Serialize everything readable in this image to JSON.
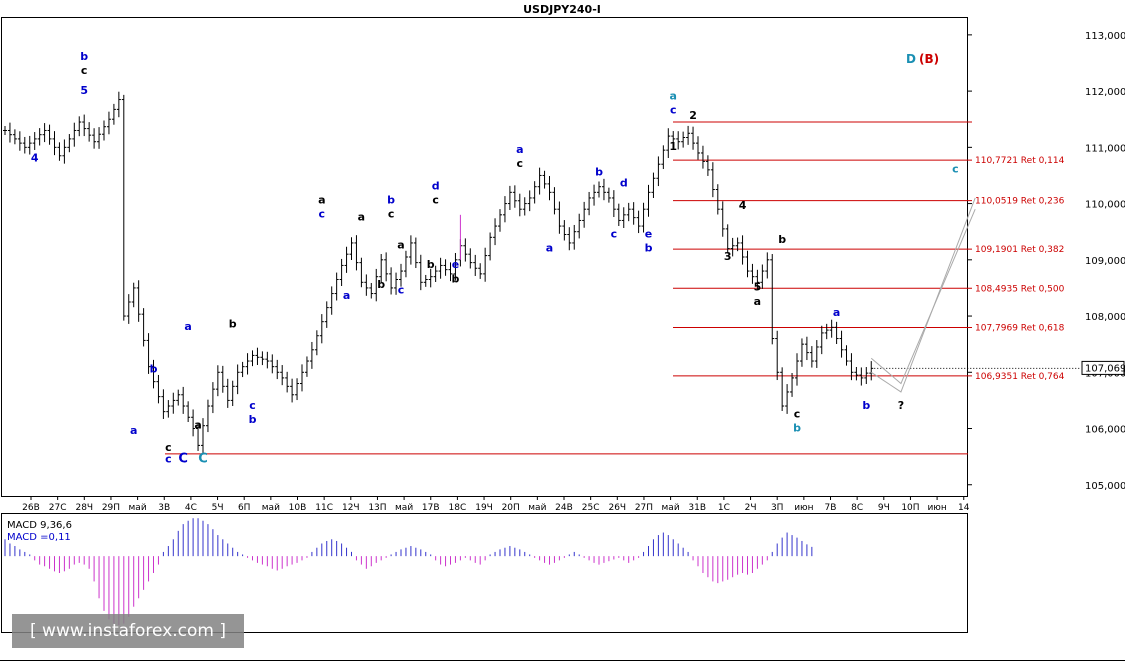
{
  "chart_data": {
    "type": "candlestick",
    "title": "USDJPY240-I",
    "y_range": [
      104.8,
      113.3
    ],
    "y_ticks": [
      "113,000",
      "112,000",
      "111,000",
      "110,000",
      "109,000",
      "108,000",
      "107,000",
      "106,000",
      "105,000"
    ],
    "y_tick_values": [
      113,
      112,
      111,
      110,
      109,
      108,
      107,
      106,
      105
    ],
    "current_price": {
      "value": 107.069,
      "label": "107,069"
    },
    "x_ticks": [
      "26В",
      "27С",
      "28Ч",
      "29П",
      "май",
      "3В",
      "4С",
      "5Ч",
      "6П",
      "май",
      "10В",
      "11С",
      "12Ч",
      "13П",
      "май",
      "17В",
      "18С",
      "19Ч",
      "20П",
      "май",
      "24В",
      "25С",
      "26Ч",
      "27П",
      "май",
      "31В",
      "1С",
      "2Ч",
      "3П",
      "июн",
      "7В",
      "8С",
      "9Ч",
      "10П",
      "июн",
      "14"
    ],
    "fibonacci_levels": [
      {
        "value": 110.7721,
        "label": "110,7721 Ret 0,114"
      },
      {
        "value": 110.0519,
        "label": "110,0519 Ret 0,236"
      },
      {
        "value": 109.1901,
        "label": "109,1901 Ret 0,382"
      },
      {
        "value": 108.4935,
        "label": "108,4935 Ret 0,500"
      },
      {
        "value": 107.7969,
        "label": "107,7969 Ret 0,618"
      },
      {
        "value": 106.9351,
        "label": "106,9351 Ret 0,764"
      }
    ],
    "fib_top_value": 111.45,
    "support_level_value": 105.55,
    "price_path": [
      [
        0,
        111.3
      ],
      [
        4,
        111.0
      ],
      [
        8,
        111.3
      ],
      [
        11,
        110.85
      ],
      [
        15,
        111.45
      ],
      [
        18,
        111.1
      ],
      [
        21,
        111.5
      ],
      [
        23,
        111.85
      ],
      [
        24,
        108.0
      ],
      [
        26,
        108.5
      ],
      [
        29,
        107.1
      ],
      [
        32,
        106.3
      ],
      [
        35,
        106.6
      ],
      [
        38,
        106.0
      ],
      [
        39,
        105.7
      ],
      [
        41,
        106.4
      ],
      [
        43,
        107.0
      ],
      [
        45,
        106.5
      ],
      [
        47,
        107.0
      ],
      [
        50,
        107.3
      ],
      [
        53,
        107.2
      ],
      [
        56,
        106.9
      ],
      [
        58,
        106.6
      ],
      [
        60,
        107.0
      ],
      [
        62,
        107.4
      ],
      [
        64,
        107.9
      ],
      [
        66,
        108.4
      ],
      [
        68,
        108.9
      ],
      [
        70,
        109.3
      ],
      [
        72,
        108.6
      ],
      [
        74,
        108.4
      ],
      [
        76,
        109.0
      ],
      [
        78,
        108.5
      ],
      [
        80,
        108.8
      ],
      [
        82,
        109.3
      ],
      [
        84,
        108.6
      ],
      [
        86,
        108.7
      ],
      [
        88,
        108.9
      ],
      [
        90,
        108.75
      ],
      [
        92,
        109.25
      ],
      [
        94,
        108.95
      ],
      [
        96,
        108.75
      ],
      [
        98,
        109.4
      ],
      [
        100,
        109.8
      ],
      [
        102,
        110.2
      ],
      [
        104,
        109.9
      ],
      [
        106,
        110.1
      ],
      [
        108,
        110.5
      ],
      [
        110,
        110.2
      ],
      [
        112,
        109.6
      ],
      [
        114,
        109.3
      ],
      [
        116,
        109.7
      ],
      [
        118,
        110.1
      ],
      [
        120,
        110.3
      ],
      [
        122,
        110.1
      ],
      [
        124,
        109.7
      ],
      [
        126,
        109.9
      ],
      [
        128,
        109.6
      ],
      [
        130,
        110.2
      ],
      [
        132,
        110.7
      ],
      [
        134,
        111.2
      ],
      [
        136,
        111.1
      ],
      [
        138,
        111.25
      ],
      [
        140,
        110.9
      ],
      [
        142,
        110.6
      ],
      [
        144,
        109.9
      ],
      [
        146,
        109.2
      ],
      [
        148,
        109.3
      ],
      [
        150,
        108.8
      ],
      [
        152,
        108.6
      ],
      [
        154,
        109.0
      ],
      [
        155,
        107.6
      ],
      [
        157,
        106.4
      ],
      [
        159,
        106.9
      ],
      [
        161,
        107.5
      ],
      [
        163,
        107.2
      ],
      [
        165,
        107.7
      ],
      [
        167,
        107.8
      ],
      [
        169,
        107.4
      ],
      [
        171,
        107.0
      ],
      [
        173,
        106.9
      ],
      [
        175,
        107.07
      ]
    ],
    "projection_paths": [
      [
        [
          175,
          107.0
        ],
        [
          181,
          106.65
        ],
        [
          196,
          110.1
        ]
      ],
      [
        [
          175,
          107.25
        ],
        [
          181,
          106.8
        ],
        [
          196,
          109.9
        ]
      ]
    ],
    "wave_labels": [
      {
        "text": "b",
        "color": "#0000cc",
        "x": 16,
        "y": 112.55
      },
      {
        "text": "c",
        "color": "#000000",
        "x": 16,
        "y": 112.3
      },
      {
        "text": "5",
        "color": "#0000cc",
        "x": 16,
        "y": 111.95
      },
      {
        "text": "4",
        "color": "#0000cc",
        "x": 6,
        "y": 110.75
      },
      {
        "text": "a",
        "color": "#0000cc",
        "x": 26,
        "y": 105.9
      },
      {
        "text": "b",
        "color": "#0000cc",
        "x": 30,
        "y": 107.0
      },
      {
        "text": "c",
        "color": "#000000",
        "x": 33,
        "y": 105.6
      },
      {
        "text": "c",
        "color": "#0000cc",
        "x": 33,
        "y": 105.4
      },
      {
        "text": "C",
        "color": "#0000cc",
        "x": 36,
        "y": 105.4
      },
      {
        "text": "C",
        "color": "#1a8fb3",
        "x": 40,
        "y": 105.4
      },
      {
        "text": "a",
        "color": "#0000cc",
        "x": 37,
        "y": 107.75
      },
      {
        "text": "a",
        "color": "#000000",
        "x": 39,
        "y": 106.0
      },
      {
        "text": "b",
        "color": "#000000",
        "x": 46,
        "y": 107.8
      },
      {
        "text": "c",
        "color": "#0000cc",
        "x": 50,
        "y": 106.35
      },
      {
        "text": "b",
        "color": "#0000cc",
        "x": 50,
        "y": 106.1
      },
      {
        "text": "a",
        "color": "#000000",
        "x": 64,
        "y": 110.0
      },
      {
        "text": "c",
        "color": "#0000cc",
        "x": 64,
        "y": 109.75
      },
      {
        "text": "a",
        "color": "#0000cc",
        "x": 69,
        "y": 108.3
      },
      {
        "text": "a",
        "color": "#000000",
        "x": 72,
        "y": 109.7
      },
      {
        "text": "b",
        "color": "#000000",
        "x": 76,
        "y": 108.5
      },
      {
        "text": "b",
        "color": "#0000cc",
        "x": 78,
        "y": 110.0
      },
      {
        "text": "c",
        "color": "#000000",
        "x": 78,
        "y": 109.75
      },
      {
        "text": "c",
        "color": "#0000cc",
        "x": 80,
        "y": 108.4
      },
      {
        "text": "a",
        "color": "#000000",
        "x": 80,
        "y": 109.2
      },
      {
        "text": "b",
        "color": "#000000",
        "x": 86,
        "y": 108.85
      },
      {
        "text": "d",
        "color": "#0000cc",
        "x": 87,
        "y": 110.25
      },
      {
        "text": "c",
        "color": "#000000",
        "x": 87,
        "y": 110.0
      },
      {
        "text": "e",
        "color": "#0000cc",
        "x": 91,
        "y": 108.85
      },
      {
        "text": "b",
        "color": "#000000",
        "x": 91,
        "y": 108.6
      },
      {
        "text": "a",
        "color": "#0000cc",
        "x": 104,
        "y": 110.9
      },
      {
        "text": "c",
        "color": "#000000",
        "x": 104,
        "y": 110.65
      },
      {
        "text": "a",
        "color": "#0000cc",
        "x": 110,
        "y": 109.15
      },
      {
        "text": "b",
        "color": "#0000cc",
        "x": 120,
        "y": 110.5
      },
      {
        "text": "d",
        "color": "#0000cc",
        "x": 125,
        "y": 110.3
      },
      {
        "text": "c",
        "color": "#0000cc",
        "x": 123,
        "y": 109.4
      },
      {
        "text": "e",
        "color": "#0000cc",
        "x": 130,
        "y": 109.4
      },
      {
        "text": "b",
        "color": "#0000cc",
        "x": 130,
        "y": 109.15
      },
      {
        "text": "a",
        "color": "#1a8fb3",
        "x": 135,
        "y": 111.85
      },
      {
        "text": "c",
        "color": "#0000cc",
        "x": 135,
        "y": 111.6
      },
      {
        "text": "2",
        "color": "#000000",
        "x": 139,
        "y": 111.5
      },
      {
        "text": "1",
        "color": "#000000",
        "x": 135,
        "y": 110.95
      },
      {
        "text": "4",
        "color": "#000000",
        "x": 149,
        "y": 109.9
      },
      {
        "text": "3",
        "color": "#000000",
        "x": 146,
        "y": 109.0
      },
      {
        "text": "b",
        "color": "#000000",
        "x": 157,
        "y": 109.3
      },
      {
        "text": "5",
        "color": "#000000",
        "x": 152,
        "y": 108.45
      },
      {
        "text": "a",
        "color": "#000000",
        "x": 152,
        "y": 108.2
      },
      {
        "text": "a",
        "color": "#0000cc",
        "x": 168,
        "y": 108.0
      },
      {
        "text": "c",
        "color": "#000000",
        "x": 160,
        "y": 106.2
      },
      {
        "text": "b",
        "color": "#1a8fb3",
        "x": 160,
        "y": 105.95
      },
      {
        "text": "b",
        "color": "#0000cc",
        "x": 174,
        "y": 106.35
      },
      {
        "text": "?",
        "color": "#000000",
        "x": 181,
        "y": 106.35
      },
      {
        "text": "c",
        "color": "#1a8fb3",
        "x": 192,
        "y": 110.55
      }
    ],
    "wave_degree_label": {
      "main": "D",
      "main_color": "#1a8fb3",
      "alt": "(B)",
      "alt_color": "#cc0000"
    },
    "macd": {
      "label": "MACD 9,36,6",
      "value_label": "MACD =0,11",
      "range": [
        -0.9,
        0.5
      ],
      "values": [
        0.2,
        0.15,
        0.12,
        0.08,
        0.05,
        0.02,
        -0.05,
        -0.1,
        -0.12,
        -0.15,
        -0.18,
        -0.2,
        -0.18,
        -0.15,
        -0.1,
        -0.08,
        -0.1,
        -0.15,
        -0.3,
        -0.5,
        -0.65,
        -0.75,
        -0.8,
        -0.82,
        -0.8,
        -0.72,
        -0.6,
        -0.5,
        -0.4,
        -0.3,
        -0.2,
        -0.1,
        0.05,
        0.12,
        0.2,
        0.3,
        0.38,
        0.42,
        0.45,
        0.45,
        0.42,
        0.38,
        0.32,
        0.25,
        0.2,
        0.15,
        0.1,
        0.05,
        0.02,
        -0.02,
        -0.05,
        -0.08,
        -0.1,
        -0.12,
        -0.15,
        -0.17,
        -0.15,
        -0.12,
        -0.1,
        -0.08,
        -0.05,
        -0.02,
        0.05,
        0.1,
        0.15,
        0.18,
        0.2,
        0.18,
        0.15,
        0.1,
        0.05,
        -0.05,
        -0.1,
        -0.15,
        -0.12,
        -0.08,
        -0.05,
        -0.02,
        0.02,
        0.05,
        0.08,
        0.1,
        0.12,
        0.1,
        0.08,
        0.05,
        0.02,
        -0.05,
        -0.1,
        -0.12,
        -0.1,
        -0.08,
        -0.05,
        -0.02,
        -0.05,
        -0.08,
        -0.1,
        -0.05,
        0.02,
        0.05,
        0.08,
        0.1,
        0.12,
        0.1,
        0.08,
        0.05,
        0.02,
        -0.02,
        -0.05,
        -0.08,
        -0.1,
        -0.08,
        -0.05,
        -0.02,
        0.02,
        0.05,
        0.02,
        -0.02,
        -0.05,
        -0.08,
        -0.1,
        -0.08,
        -0.06,
        -0.04,
        -0.02,
        -0.05,
        -0.08,
        -0.05,
        -0.02,
        0.05,
        0.12,
        0.2,
        0.25,
        0.28,
        0.25,
        0.2,
        0.15,
        0.1,
        0.05,
        -0.05,
        -0.12,
        -0.2,
        -0.25,
        -0.3,
        -0.32,
        -0.3,
        -0.28,
        -0.25,
        -0.22,
        -0.2,
        -0.22,
        -0.2,
        -0.15,
        -0.1,
        -0.05,
        0.05,
        0.15,
        0.22,
        0.28,
        0.25,
        0.22,
        0.18,
        0.14,
        0.11
      ]
    }
  },
  "watermark": {
    "text": "[ www.instaforex.com ]"
  }
}
